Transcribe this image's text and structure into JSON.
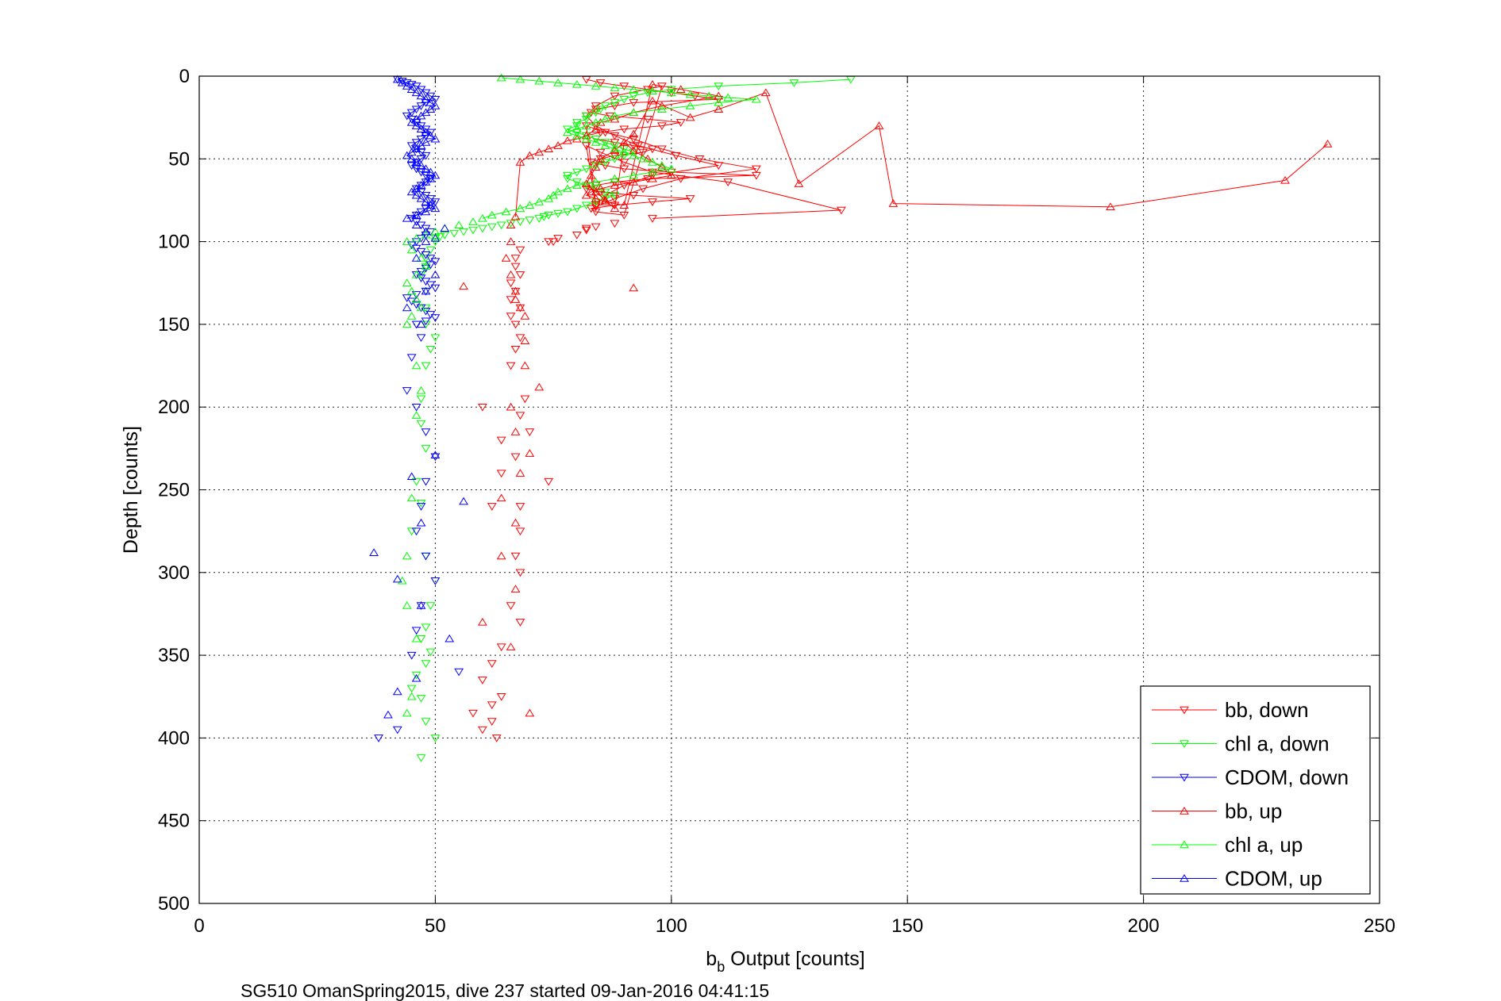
{
  "chart_data": {
    "type": "scatter",
    "title": "",
    "xlabel_main": "b",
    "xlabel_sub": "b",
    "xlabel_rest": " Output [counts]",
    "ylabel": "Depth [counts]",
    "caption": "SG510 OmanSpring2015, dive 237 started 09-Jan-2016 04:41:15",
    "xlim": [
      0,
      250
    ],
    "ylim": [
      0,
      500
    ],
    "y_reversed": true,
    "xticks": [
      "0",
      "50",
      "100",
      "150",
      "200",
      "250"
    ],
    "yticks": [
      "0",
      "50",
      "100",
      "150",
      "200",
      "250",
      "300",
      "350",
      "400",
      "450",
      "500"
    ],
    "grid": true,
    "legend_position": "bottom-right",
    "series": [
      {
        "name": "bb, down",
        "color": "#ff0000",
        "marker": "triangle-down",
        "x": [
          82,
          85,
          90,
          95,
          100,
          105,
          110,
          92,
          88,
          84,
          83,
          87,
          95,
          102,
          98,
          90,
          85,
          82,
          84,
          88,
          92,
          96,
          94,
          88,
          85,
          83,
          86,
          90,
          100,
          118,
          95,
          88,
          84,
          82,
          85,
          92,
          104,
          96,
          88,
          83,
          84,
          90,
          98,
          88,
          84,
          82,
          84,
          88,
          93,
          101,
          110,
          96,
          90,
          86,
          84,
          82,
          86,
          92,
          98,
          106,
          118,
          102,
          94,
          88,
          84,
          82,
          85,
          90,
          96,
          112,
          136,
          96,
          88,
          84,
          82,
          82,
          80,
          76,
          74,
          75,
          68,
          67,
          67,
          68,
          66,
          67,
          66,
          68,
          66,
          67,
          68,
          67,
          66,
          69,
          68,
          70,
          67,
          74,
          68,
          68,
          67,
          68,
          66,
          68,
          64,
          62,
          60,
          64,
          62,
          58,
          62,
          63,
          60,
          62,
          64,
          64,
          60
        ],
        "y": [
          2,
          4,
          6,
          8,
          10,
          12,
          14,
          16,
          18,
          20,
          22,
          24,
          26,
          28,
          30,
          32,
          34,
          36,
          38,
          40,
          42,
          44,
          46,
          48,
          50,
          52,
          54,
          56,
          58,
          60,
          62,
          64,
          66,
          68,
          70,
          72,
          74,
          76,
          78,
          80,
          82,
          84,
          6,
          12,
          18,
          24,
          30,
          36,
          42,
          48,
          54,
          60,
          66,
          72,
          78,
          30,
          34,
          38,
          44,
          50,
          56,
          62,
          68,
          74,
          79,
          42,
          46,
          52,
          58,
          64,
          81,
          86,
          89,
          91,
          92,
          93,
          96,
          98,
          100,
          100,
          105,
          110,
          115,
          120,
          125,
          130,
          135,
          140,
          145,
          150,
          158,
          165,
          175,
          195,
          205,
          215,
          230,
          245,
          260,
          275,
          290,
          300,
          320,
          330,
          345,
          355,
          365,
          375,
          380,
          385,
          390,
          400,
          395,
          260,
          240,
          220,
          200
        ]
      },
      {
        "name": "chl a, down",
        "color": "#00ff00",
        "marker": "triangle-down",
        "x": [
          138,
          126,
          110,
          100,
          95,
          92,
          90,
          88,
          86,
          85,
          84,
          82,
          82,
          80,
          80,
          78,
          80,
          82,
          84,
          86,
          88,
          90,
          92,
          90,
          88,
          86,
          84,
          82,
          80,
          78,
          78,
          80,
          82,
          84,
          86,
          88,
          86,
          84,
          82,
          80,
          78,
          76,
          74,
          73,
          72,
          70,
          68,
          66,
          64,
          62,
          60,
          58,
          56,
          54,
          52,
          51,
          50,
          50,
          49,
          48,
          48,
          47,
          48,
          48,
          48,
          50,
          49,
          48,
          47,
          47,
          48,
          46,
          47,
          45,
          48,
          50,
          49,
          48,
          47,
          49,
          48,
          46,
          45,
          47,
          48,
          50,
          47
        ],
        "y": [
          2,
          4,
          6,
          8,
          10,
          12,
          14,
          16,
          18,
          20,
          22,
          24,
          26,
          28,
          30,
          32,
          34,
          36,
          38,
          40,
          42,
          44,
          46,
          48,
          50,
          52,
          54,
          56,
          58,
          60,
          62,
          64,
          66,
          68,
          70,
          72,
          74,
          76,
          78,
          80,
          82,
          83,
          84,
          85,
          86,
          87,
          88,
          89,
          90,
          91,
          92,
          93,
          94,
          95,
          96,
          97,
          98,
          100,
          105,
          110,
          115,
          120,
          130,
          140,
          150,
          158,
          165,
          175,
          195,
          210,
          225,
          245,
          258,
          275,
          290,
          305,
          320,
          333,
          340,
          348,
          355,
          362,
          370,
          376,
          390,
          400,
          412
        ]
      },
      {
        "name": "CDOM, down",
        "color": "#0000ff",
        "marker": "triangle-down",
        "x": [
          42,
          43,
          44,
          45,
          46,
          47,
          48,
          49,
          50,
          48,
          47,
          46,
          45,
          44,
          45,
          46,
          47,
          48,
          49,
          48,
          47,
          46,
          45,
          46,
          47,
          48,
          47,
          46,
          45,
          46,
          47,
          48,
          49,
          48,
          47,
          46,
          47,
          48,
          49,
          50,
          49,
          48,
          47,
          46,
          45,
          46,
          47,
          48,
          49,
          48,
          47,
          46,
          45,
          46,
          47,
          48,
          49,
          50,
          49,
          48,
          47,
          46,
          47,
          48,
          49,
          50,
          48,
          46,
          44,
          45,
          46,
          47,
          48,
          49,
          50,
          48,
          46,
          47,
          45,
          44,
          46,
          48,
          50,
          48,
          47,
          46,
          48,
          50,
          47,
          46,
          45,
          55,
          42,
          38
        ],
        "y": [
          2,
          3,
          4,
          5,
          6,
          8,
          10,
          12,
          14,
          16,
          18,
          20,
          22,
          24,
          26,
          28,
          30,
          32,
          34,
          36,
          38,
          40,
          42,
          44,
          46,
          48,
          50,
          52,
          54,
          56,
          58,
          60,
          62,
          64,
          66,
          68,
          70,
          72,
          74,
          76,
          78,
          80,
          82,
          84,
          86,
          88,
          90,
          92,
          94,
          96,
          98,
          100,
          102,
          104,
          106,
          108,
          110,
          112,
          114,
          116,
          118,
          120,
          122,
          124,
          126,
          128,
          130,
          132,
          134,
          136,
          138,
          140,
          142,
          144,
          146,
          148,
          150,
          158,
          170,
          190,
          200,
          215,
          230,
          245,
          260,
          275,
          290,
          305,
          320,
          335,
          350,
          360,
          395,
          400
        ]
      },
      {
        "name": "bb, up",
        "color": "#ff0000",
        "marker": "triangle-up",
        "x": [
          239,
          230,
          193,
          147,
          144,
          127,
          120,
          110,
          104,
          96,
          92,
          88,
          85,
          84,
          83,
          82,
          84,
          86,
          88,
          90,
          92,
          95,
          98,
          100,
          96,
          92,
          88,
          85,
          83,
          82,
          84,
          86,
          90,
          96,
          102,
          110,
          98,
          92,
          88,
          85,
          84,
          82,
          80,
          78,
          76,
          74,
          72,
          70,
          68,
          67,
          66,
          66,
          65,
          66,
          67,
          67,
          68,
          69,
          69,
          92,
          56,
          69,
          72,
          66,
          67,
          70,
          68,
          64,
          67,
          64,
          67,
          60,
          66,
          70
        ],
        "y": [
          41,
          63,
          79,
          77,
          30,
          65,
          10,
          20,
          25,
          15,
          35,
          45,
          50,
          55,
          60,
          65,
          70,
          75,
          80,
          40,
          45,
          50,
          55,
          60,
          62,
          64,
          66,
          68,
          70,
          72,
          74,
          76,
          78,
          5,
          8,
          12,
          18,
          22,
          26,
          28,
          32,
          36,
          38,
          39,
          42,
          44,
          46,
          48,
          52,
          85,
          90,
          100,
          110,
          120,
          130,
          135,
          140,
          145,
          160,
          128,
          127,
          175,
          188,
          200,
          215,
          228,
          240,
          255,
          270,
          290,
          310,
          330,
          345,
          385
        ]
      },
      {
        "name": "chl a, up",
        "color": "#00ff00",
        "marker": "triangle-up",
        "x": [
          64,
          68,
          72,
          76,
          80,
          84,
          88,
          92,
          96,
          100,
          104,
          108,
          112,
          118,
          110,
          104,
          98,
          92,
          88,
          86,
          84,
          82,
          80,
          78,
          80,
          82,
          84,
          86,
          88,
          90,
          92,
          94,
          96,
          98,
          100,
          96,
          92,
          88,
          84,
          80,
          78,
          76,
          75,
          74,
          72,
          70,
          68,
          65,
          62,
          60,
          58,
          55,
          52,
          50,
          48,
          46,
          44,
          45,
          47,
          48,
          46,
          44,
          45,
          46,
          47,
          45,
          44,
          46,
          47,
          46,
          45,
          44,
          43,
          44,
          46,
          45,
          44
        ],
        "y": [
          1,
          2,
          3,
          4,
          5,
          6,
          7,
          8,
          9,
          10,
          11,
          12,
          13,
          14,
          16,
          18,
          20,
          22,
          24,
          26,
          28,
          30,
          32,
          34,
          36,
          38,
          40,
          42,
          44,
          46,
          48,
          50,
          52,
          54,
          56,
          58,
          60,
          62,
          64,
          66,
          68,
          70,
          72,
          74,
          76,
          78,
          80,
          82,
          84,
          86,
          88,
          90,
          92,
          94,
          96,
          98,
          100,
          105,
          110,
          115,
          120,
          125,
          130,
          135,
          140,
          145,
          150,
          175,
          190,
          205,
          255,
          290,
          305,
          320,
          340,
          375,
          385
        ]
      },
      {
        "name": "CDOM, up",
        "color": "#0000ff",
        "marker": "triangle-up",
        "x": [
          42,
          43,
          44,
          45,
          46,
          47,
          48,
          49,
          50,
          49,
          48,
          47,
          46,
          45,
          46,
          47,
          48,
          49,
          50,
          48,
          47,
          46,
          45,
          44,
          45,
          46,
          47,
          48,
          49,
          50,
          49,
          48,
          47,
          46,
          45,
          46,
          47,
          48,
          49,
          50,
          48,
          46,
          44,
          46,
          48,
          50,
          52,
          48,
          46,
          50,
          48,
          44,
          47,
          56,
          47,
          45,
          37,
          42,
          47,
          53,
          42,
          40,
          46,
          50
        ],
        "y": [
          2,
          4,
          6,
          8,
          10,
          12,
          14,
          16,
          18,
          20,
          22,
          24,
          26,
          28,
          30,
          32,
          34,
          36,
          38,
          40,
          42,
          44,
          46,
          48,
          50,
          52,
          54,
          56,
          58,
          60,
          62,
          64,
          66,
          68,
          70,
          72,
          74,
          76,
          78,
          80,
          82,
          84,
          86,
          90,
          94,
          98,
          92,
          100,
          110,
          120,
          130,
          140,
          150,
          257,
          270,
          242,
          288,
          304,
          320,
          340,
          372,
          386,
          364,
          229
        ]
      }
    ]
  }
}
